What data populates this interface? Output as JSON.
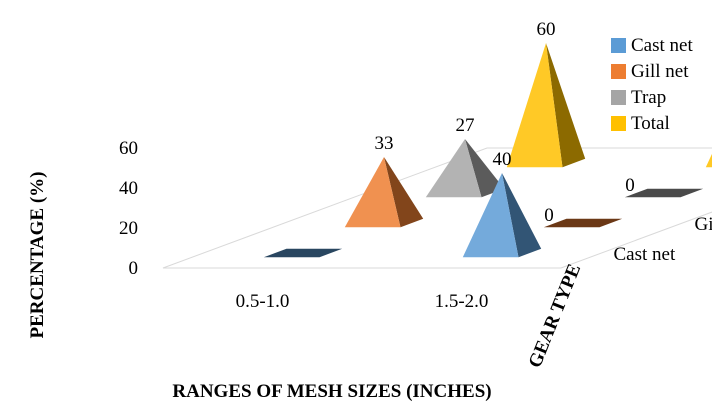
{
  "chart_data": {
    "type": "bar3d-pyramid",
    "xlabel": "RANGES OF MESH SIZES (INCHES)",
    "ylabel": "PERCENTAGE (%)",
    "zlabel": "GEAR TYPE",
    "ylim": [
      0,
      60
    ],
    "yticks": [
      0,
      20,
      40,
      60
    ],
    "categories": [
      "0.5-1.0",
      "1.5-2.0"
    ],
    "series": [
      {
        "name": "Cast net",
        "color": "#5b9bd5",
        "values": [
          0,
          40
        ],
        "labels": [
          "",
          "40"
        ]
      },
      {
        "name": "Gill net",
        "color": "#ed7d31",
        "values": [
          33,
          0
        ],
        "labels": [
          "33",
          "0"
        ]
      },
      {
        "name": "Trap",
        "color": "#a5a5a5",
        "values": [
          27,
          0
        ],
        "labels": [
          "27",
          "0"
        ]
      },
      {
        "name": "Total",
        "color": "#ffc000",
        "values": [
          60,
          40
        ],
        "labels": [
          "60",
          "40"
        ]
      }
    ],
    "leftover_labels": [
      "0",
      "0"
    ],
    "legend": {
      "position": "right",
      "items": [
        "Cast net",
        "Gill net",
        "Trap",
        "Total"
      ]
    }
  }
}
